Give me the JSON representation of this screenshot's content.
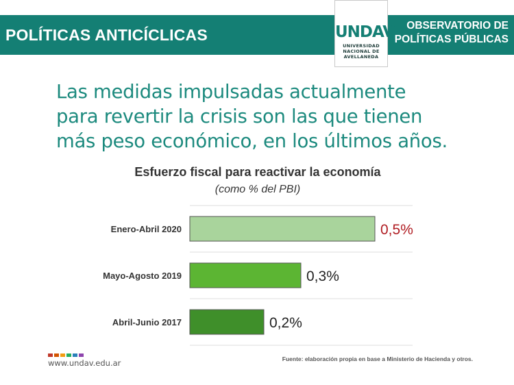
{
  "header": {
    "title": "POLÍTICAS ANTICÍCLICAS",
    "logo_mark": "UNDAV",
    "logo_sub": [
      "UNIVERSIDAD",
      "NACIONAL DE",
      "AVELLANEDA"
    ],
    "observatorio": [
      "OBSERVATORIO DE",
      "POLÍTICAS PÚBLICAS"
    ]
  },
  "headline": [
    "Las medidas impulsadas actualmente",
    "para revertir la crisis son las que tienen",
    "más peso económico, en los últimos años."
  ],
  "colors": {
    "brand_teal": "#147f74",
    "headline_teal": "#1c8a7e",
    "highlight_red": "#b01c22",
    "bar_outline": "#555555",
    "grid": "#dcdcdc"
  },
  "chart_data": {
    "type": "bar",
    "orientation": "horizontal",
    "title": "Esfuerzo fiscal para reactivar la economía",
    "subtitle": "(como % del PBI)",
    "categories": [
      "Enero-Abril 2020",
      "Mayo-Agosto 2019",
      "Abril-Junio 2017"
    ],
    "values": [
      0.5,
      0.3,
      0.2
    ],
    "data_labels": [
      "0,5%",
      "0,3%",
      "0,2%"
    ],
    "bar_colors": [
      "#a9d49c",
      "#5cb533",
      "#3f8f2a"
    ],
    "label_colors": [
      "#b01c22",
      "#222222",
      "#222222"
    ],
    "xlim": [
      0,
      0.5
    ],
    "grid": true
  },
  "footer": {
    "url": "www.undav.edu.ar",
    "source": "Fuente: elaboración propia en base a Ministerio de Hacienda y otros.",
    "dot_colors": [
      "#c0392b",
      "#d35400",
      "#f39c12",
      "#27ae60",
      "#2980b9",
      "#8e44ad"
    ]
  }
}
